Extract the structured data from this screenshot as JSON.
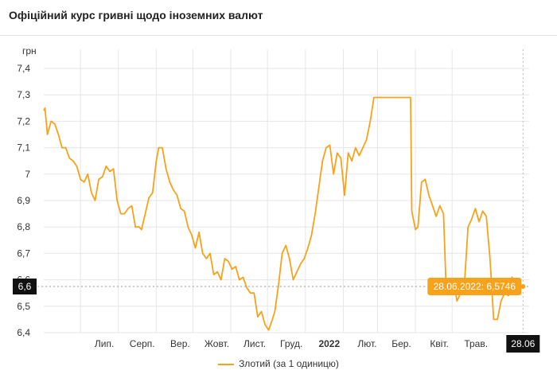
{
  "header": {
    "title": "Офіційний курс гривні щодо іноземних валют"
  },
  "colors": {
    "series": "#f7a21b",
    "grid": "#e6e6e6",
    "axis_text": "#333333",
    "crosshair_label_bg": "#111111",
    "tooltip_bg": "#f7a21b"
  },
  "chart_data": {
    "type": "line",
    "ylabel": "грн",
    "ylim": [
      6.4,
      7.4
    ],
    "yticks": [
      "6,4",
      "6,5",
      "6,6",
      "6,7",
      "6,8",
      "6,9",
      "7",
      "7,1",
      "7,2",
      "7,3",
      "7,4"
    ],
    "xlim": [
      "2021-06-01",
      "2022-07-03"
    ],
    "xticks": [
      {
        "date": "2021-07-01",
        "label": "Лип."
      },
      {
        "date": "2021-08-01",
        "label": "Серп."
      },
      {
        "date": "2021-09-01",
        "label": "Вер."
      },
      {
        "date": "2021-10-01",
        "label": "Жовт."
      },
      {
        "date": "2021-11-01",
        "label": "Лист."
      },
      {
        "date": "2021-12-01",
        "label": "Груд."
      },
      {
        "date": "2022-01-01",
        "label": "2022",
        "bold": true
      },
      {
        "date": "2022-02-01",
        "label": "Лют."
      },
      {
        "date": "2022-03-01",
        "label": "Бер."
      },
      {
        "date": "2022-04-01",
        "label": "Квіт."
      },
      {
        "date": "2022-05-01",
        "label": "Трав."
      }
    ],
    "series": [
      {
        "name": "Злотий (за 1 одиницю)",
        "points": [
          [
            "2021-06-01",
            7.24
          ],
          [
            "2021-06-02",
            7.25
          ],
          [
            "2021-06-04",
            7.15
          ],
          [
            "2021-06-07",
            7.2
          ],
          [
            "2021-06-10",
            7.19
          ],
          [
            "2021-06-13",
            7.15
          ],
          [
            "2021-06-16",
            7.1
          ],
          [
            "2021-06-19",
            7.1
          ],
          [
            "2021-06-22",
            7.06
          ],
          [
            "2021-06-25",
            7.05
          ],
          [
            "2021-06-28",
            7.03
          ],
          [
            "2021-07-01",
            6.98
          ],
          [
            "2021-07-04",
            6.97
          ],
          [
            "2021-07-07",
            7.0
          ],
          [
            "2021-07-10",
            6.93
          ],
          [
            "2021-07-13",
            6.9
          ],
          [
            "2021-07-16",
            6.98
          ],
          [
            "2021-07-19",
            6.99
          ],
          [
            "2021-07-22",
            7.03
          ],
          [
            "2021-07-25",
            7.01
          ],
          [
            "2021-07-28",
            7.02
          ],
          [
            "2021-07-31",
            6.9
          ],
          [
            "2021-08-03",
            6.85
          ],
          [
            "2021-08-06",
            6.85
          ],
          [
            "2021-08-09",
            6.87
          ],
          [
            "2021-08-12",
            6.88
          ],
          [
            "2021-08-15",
            6.8
          ],
          [
            "2021-08-18",
            6.8
          ],
          [
            "2021-08-20",
            6.79
          ],
          [
            "2021-08-23",
            6.85
          ],
          [
            "2021-08-26",
            6.91
          ],
          [
            "2021-08-29",
            6.93
          ],
          [
            "2021-09-01",
            7.05
          ],
          [
            "2021-09-03",
            7.1
          ],
          [
            "2021-09-06",
            7.1
          ],
          [
            "2021-09-09",
            7.02
          ],
          [
            "2021-09-12",
            6.97
          ],
          [
            "2021-09-15",
            6.94
          ],
          [
            "2021-09-18",
            6.92
          ],
          [
            "2021-09-21",
            6.87
          ],
          [
            "2021-09-24",
            6.86
          ],
          [
            "2021-09-27",
            6.8
          ],
          [
            "2021-09-30",
            6.77
          ],
          [
            "2021-10-03",
            6.72
          ],
          [
            "2021-10-06",
            6.78
          ],
          [
            "2021-10-09",
            6.7
          ],
          [
            "2021-10-12",
            6.68
          ],
          [
            "2021-10-15",
            6.7
          ],
          [
            "2021-10-18",
            6.62
          ],
          [
            "2021-10-21",
            6.63
          ],
          [
            "2021-10-24",
            6.6
          ],
          [
            "2021-10-27",
            6.68
          ],
          [
            "2021-10-30",
            6.67
          ],
          [
            "2021-11-02",
            6.64
          ],
          [
            "2021-11-05",
            6.65
          ],
          [
            "2021-11-08",
            6.6
          ],
          [
            "2021-11-11",
            6.61
          ],
          [
            "2021-11-14",
            6.57
          ],
          [
            "2021-11-17",
            6.55
          ],
          [
            "2021-11-20",
            6.55
          ],
          [
            "2021-11-23",
            6.46
          ],
          [
            "2021-11-26",
            6.48
          ],
          [
            "2021-11-29",
            6.43
          ],
          [
            "2021-12-02",
            6.41
          ],
          [
            "2021-12-05",
            6.45
          ],
          [
            "2021-12-07",
            6.48
          ],
          [
            "2021-12-10",
            6.58
          ],
          [
            "2021-12-13",
            6.7
          ],
          [
            "2021-12-16",
            6.73
          ],
          [
            "2021-12-19",
            6.68
          ],
          [
            "2021-12-22",
            6.6
          ],
          [
            "2021-12-25",
            6.63
          ],
          [
            "2021-12-28",
            6.66
          ],
          [
            "2021-12-31",
            6.68
          ],
          [
            "2022-01-03",
            6.72
          ],
          [
            "2022-01-06",
            6.77
          ],
          [
            "2022-01-09",
            6.85
          ],
          [
            "2022-01-12",
            6.95
          ],
          [
            "2022-01-15",
            7.05
          ],
          [
            "2022-01-18",
            7.1
          ],
          [
            "2022-01-21",
            7.11
          ],
          [
            "2022-01-24",
            7.0
          ],
          [
            "2022-01-27",
            7.08
          ],
          [
            "2022-01-30",
            7.06
          ],
          [
            "2022-02-02",
            6.92
          ],
          [
            "2022-02-05",
            7.08
          ],
          [
            "2022-02-08",
            7.05
          ],
          [
            "2022-02-11",
            7.1
          ],
          [
            "2022-02-14",
            7.07
          ],
          [
            "2022-02-17",
            7.1
          ],
          [
            "2022-02-20",
            7.13
          ],
          [
            "2022-02-23",
            7.2
          ],
          [
            "2022-02-26",
            7.29
          ],
          [
            "2022-03-01",
            7.29
          ],
          [
            "2022-03-28",
            7.29
          ],
          [
            "2022-03-29",
            6.86
          ],
          [
            "2022-04-01",
            6.79
          ],
          [
            "2022-04-03",
            6.8
          ],
          [
            "2022-04-06",
            6.97
          ],
          [
            "2022-04-09",
            6.98
          ],
          [
            "2022-04-12",
            6.92
          ],
          [
            "2022-04-15",
            6.88
          ],
          [
            "2022-04-18",
            6.84
          ],
          [
            "2022-04-21",
            6.88
          ],
          [
            "2022-04-24",
            6.85
          ],
          [
            "2022-04-26",
            6.58
          ],
          [
            "2022-04-29",
            6.6
          ],
          [
            "2022-05-02",
            6.6
          ],
          [
            "2022-05-05",
            6.52
          ],
          [
            "2022-05-08",
            6.55
          ],
          [
            "2022-05-11",
            6.58
          ],
          [
            "2022-05-14",
            6.8
          ],
          [
            "2022-05-17",
            6.83
          ],
          [
            "2022-05-20",
            6.87
          ],
          [
            "2022-05-23",
            6.82
          ],
          [
            "2022-05-26",
            6.86
          ],
          [
            "2022-05-29",
            6.84
          ],
          [
            "2022-06-01",
            6.68
          ],
          [
            "2022-06-04",
            6.45
          ],
          [
            "2022-06-07",
            6.45
          ],
          [
            "2022-06-10",
            6.52
          ],
          [
            "2022-06-13",
            6.55
          ],
          [
            "2022-06-16",
            6.54
          ],
          [
            "2022-06-19",
            6.61
          ],
          [
            "2022-06-22",
            6.57
          ],
          [
            "2022-06-25",
            6.56
          ],
          [
            "2022-06-28",
            6.5746
          ]
        ]
      }
    ],
    "crosshair": {
      "date": "2022-06-28",
      "value": 6.5746,
      "x_label": "28.06",
      "y_label": "6,6",
      "tooltip": "28.06.2022: 6,5746"
    },
    "legend": {
      "position": "bottom-center"
    }
  }
}
